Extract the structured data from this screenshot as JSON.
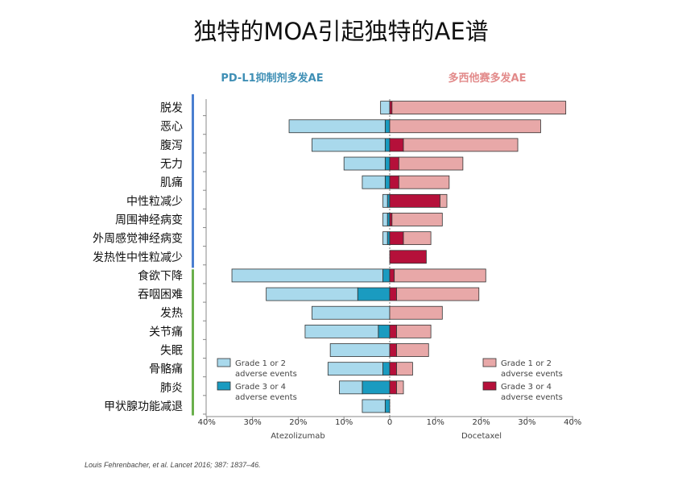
{
  "title": "独特的MOA引起独特的AE谱",
  "citation": "Louis Fehrenbacher, et al. Lancet 2016; 387: 1837–46.",
  "colors": {
    "atezo_g12": "#a9d9ec",
    "atezo_g34": "#1a9bc0",
    "doce_g12": "#e8a8a8",
    "doce_g34": "#b5103a",
    "group1_bar": "#4a7fd0",
    "group2_bar": "#6ab04c"
  },
  "chart_data": {
    "type": "bar",
    "orientation": "horizontal-diverging",
    "header_left": "PD-L1抑制剂多发AE",
    "header_right": "多西他赛多发AE",
    "xlabel_left": "Atezolizumab",
    "xlabel_right": "Docetaxel",
    "xlim": [
      -40,
      40
    ],
    "x_ticks": [
      "40%",
      "30%",
      "20%",
      "10%",
      "0",
      "10%",
      "20%",
      "30%",
      "40%"
    ],
    "categories": [
      "脱发",
      "恶心",
      "腹泻",
      "无力",
      "肌痛",
      "中性粒减少",
      "周围神经病变",
      "外周感觉神经病变",
      "发热性中性粒减少",
      "食欲下降",
      "吞咽困难",
      "发热",
      "关节痛",
      "失眠",
      "骨骼痛",
      "肺炎",
      "甲状腺功能减退"
    ],
    "group_split_index": 9,
    "series": [
      {
        "name": "Atezolizumab Grade 1 or 2 adverse events",
        "values": [
          2,
          21,
          16,
          9,
          5,
          1,
          1,
          1,
          0,
          33,
          20,
          17,
          16,
          13,
          12,
          5,
          5
        ]
      },
      {
        "name": "Atezolizumab Grade 3 or 4 adverse events",
        "values": [
          0,
          1,
          1,
          1,
          1,
          0.5,
          0.5,
          0.5,
          0,
          1.5,
          7,
          0,
          2.5,
          0,
          1.5,
          6,
          1
        ]
      },
      {
        "name": "Docetaxel Grade 1 or 2 adverse events",
        "values": [
          38,
          33,
          25,
          14,
          11,
          1.5,
          11,
          6,
          0,
          20,
          18,
          11.5,
          7.5,
          7,
          3.5,
          1.5,
          0
        ]
      },
      {
        "name": "Docetaxel Grade 3 or 4 adverse events",
        "values": [
          0.5,
          0,
          3,
          2,
          2,
          11,
          0.5,
          3,
          8,
          1,
          1.5,
          0,
          1.5,
          1.5,
          1.5,
          1.5,
          0
        ]
      }
    ],
    "legend": {
      "left_g12": [
        "Grade 1 or 2",
        "adverse events"
      ],
      "left_g34": [
        "Grade 3 or 4",
        "adverse events"
      ],
      "right_g12": [
        "Grade 1 or 2",
        "adverse events"
      ],
      "right_g34": [
        "Grade 3 or 4",
        "adverse events"
      ]
    }
  }
}
